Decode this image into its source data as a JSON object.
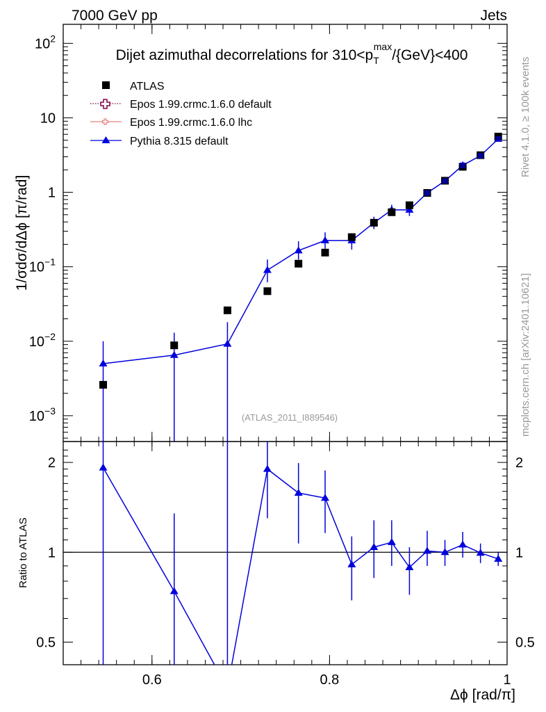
{
  "header": {
    "left": "7000 GeV pp",
    "right": "Jets"
  },
  "colors": {
    "atlas": "#000000",
    "epos_default": "#800040",
    "epos_lhc": "#e88080",
    "pythia": "#0000dd",
    "watermark": "#999999"
  },
  "chart_data": [
    {
      "name": "main",
      "type": "scatter",
      "title": "Dijet azimuthal decorrelations for 310<p_T^max/{GeV}<400",
      "title_parts": {
        "pre": "Dijet azimuthal decorrelations for 310<p",
        "sub": "T",
        "sup": "max",
        "post": "/{GeV}<400"
      },
      "ylabel": "1/σdσ/dΔϕ [π/rad]",
      "yscale": "log",
      "ylim": [
        0.00045,
        180
      ],
      "xlim": [
        0.5,
        1.0
      ],
      "yticks": [
        {
          "value": 0.001,
          "base": "10",
          "exp": "−3"
        },
        {
          "value": 0.01,
          "base": "10",
          "exp": "−2"
        },
        {
          "value": 0.1,
          "base": "10",
          "exp": "−1"
        },
        {
          "value": 1,
          "base": "1",
          "exp": ""
        },
        {
          "value": 10,
          "base": "10",
          "exp": ""
        },
        {
          "value": 100,
          "base": "10",
          "exp": "2"
        }
      ],
      "legend": [
        {
          "label": "ATLAS",
          "marker": "square"
        },
        {
          "label": "Epos 1.99.crmc.1.6.0 default",
          "marker": "open-cross"
        },
        {
          "label": "Epos 1.99.crmc.1.6.0 lhc",
          "marker": "small-cross"
        },
        {
          "label": "Pythia 8.315 default",
          "marker": "triangle"
        }
      ],
      "analysis_label": "(ATLAS_2011_I889546)",
      "series": [
        {
          "name": "ATLAS",
          "x": [
            0.545,
            0.625,
            0.685,
            0.73,
            0.765,
            0.795,
            0.825,
            0.85,
            0.87,
            0.89,
            0.91,
            0.93,
            0.95,
            0.97,
            0.99
          ],
          "y": [
            0.0026,
            0.0088,
            0.026,
            0.047,
            0.11,
            0.155,
            0.25,
            0.39,
            0.54,
            0.67,
            0.98,
            1.43,
            2.2,
            3.15,
            5.6
          ]
        },
        {
          "name": "Pythia 8.315 default",
          "x": [
            0.545,
            0.625,
            0.685,
            0.73,
            0.765,
            0.795,
            0.825,
            0.85,
            0.87,
            0.89,
            0.91,
            0.93,
            0.95,
            0.97,
            0.99
          ],
          "y": [
            0.005,
            0.0065,
            0.0092,
            0.09,
            0.165,
            0.225,
            0.225,
            0.39,
            0.58,
            0.58,
            0.98,
            1.42,
            2.3,
            3.1,
            5.2
          ],
          "ylow": [
            0.0001,
            0.0001,
            0.0001,
            0.062,
            0.125,
            0.175,
            0.17,
            0.32,
            0.48,
            0.48,
            0.88,
            1.3,
            2.1,
            2.95,
            4.9
          ],
          "yhigh": [
            0.01,
            0.013,
            0.018,
            0.125,
            0.22,
            0.29,
            0.28,
            0.47,
            0.68,
            0.68,
            1.1,
            1.55,
            2.5,
            3.3,
            5.5
          ]
        }
      ]
    },
    {
      "name": "ratio",
      "type": "line",
      "ylabel": "Ratio to ATLAS",
      "xlabel": "Δϕ [rad/π]",
      "yscale": "log",
      "ylim": [
        0.42,
        2.35
      ],
      "xlim": [
        0.5,
        1.0
      ],
      "yticks": [
        {
          "value": 0.5,
          "label": "0.5"
        },
        {
          "value": 1,
          "label": "1"
        },
        {
          "value": 2,
          "label": "2"
        }
      ],
      "xticks": [
        {
          "value": 0.6,
          "label": "0.6"
        },
        {
          "value": 0.8,
          "label": "0.8"
        },
        {
          "value": 1.0,
          "label": "1"
        }
      ],
      "reference": 1,
      "series": [
        {
          "name": "Pythia 8.315 default",
          "x": [
            0.545,
            0.625,
            0.685,
            0.73,
            0.765,
            0.795,
            0.825,
            0.85,
            0.87,
            0.89,
            0.91,
            0.93,
            0.95,
            0.97,
            0.99
          ],
          "y": [
            1.92,
            0.74,
            0.35,
            1.9,
            1.58,
            1.52,
            0.91,
            1.04,
            1.08,
            0.89,
            1.01,
            1.0,
            1.06,
            0.995,
            0.95
          ],
          "ylow": [
            0.3,
            0.3,
            0.3,
            1.3,
            1.07,
            1.16,
            0.69,
            0.82,
            0.9,
            0.72,
            0.9,
            0.9,
            0.96,
            0.92,
            0.9
          ],
          "yhigh": [
            2.35,
            1.35,
            2.35,
            2.35,
            1.99,
            1.88,
            1.13,
            1.28,
            1.28,
            1.04,
            1.18,
            1.1,
            1.17,
            1.07,
            1.0
          ]
        }
      ]
    }
  ],
  "watermarks": {
    "rivet": "Rivet 4.1.0, ≥ 100k events",
    "mcplots": "mcplots.cern.ch [arXiv:2401.10621]"
  }
}
